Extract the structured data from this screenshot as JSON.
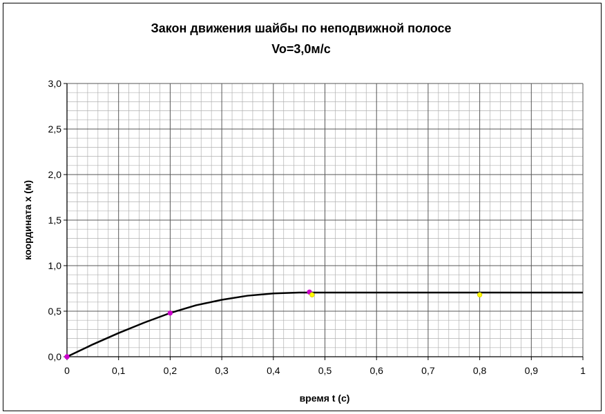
{
  "chart_data": {
    "type": "line",
    "title": "Закон движения шайбы по неподвижной полосе",
    "subtitle": "Vo=3,0м/с",
    "xlabel": "время t (с)",
    "ylabel": "координата x (м)",
    "xlim": [
      0,
      1
    ],
    "ylim": [
      0,
      3
    ],
    "x_ticks": [
      "0",
      "0,1",
      "0,2",
      "0,3",
      "0,4",
      "0,5",
      "0,6",
      "0,7",
      "0,8",
      "0,9",
      "1"
    ],
    "y_ticks": [
      "0,0",
      "0,5",
      "1,0",
      "1,5",
      "2,0",
      "2,5",
      "3,0"
    ],
    "grid": true,
    "legend": "none",
    "series": [
      {
        "values_x": [
          0,
          0.05,
          0.1,
          0.15,
          0.2,
          0.25,
          0.3,
          0.35,
          0.4,
          0.45,
          0.47,
          0.6,
          0.8,
          1.0
        ],
        "values_y": [
          0,
          0.135,
          0.26,
          0.375,
          0.48,
          0.565,
          0.625,
          0.67,
          0.695,
          0.705,
          0.705,
          0.705,
          0.705,
          0.705
        ],
        "color": "#000000"
      }
    ],
    "markers": [
      {
        "x": 0,
        "y": 0,
        "color": "#cc00cc"
      },
      {
        "x": 0.2,
        "y": 0.48,
        "color": "#cc00cc"
      },
      {
        "x": 0.47,
        "y": 0.71,
        "color": "#cc00cc"
      },
      {
        "x": 0.475,
        "y": 0.68,
        "color": "#ffff00"
      },
      {
        "x": 0.8,
        "y": 0.68,
        "color": "#ffff00"
      }
    ]
  }
}
